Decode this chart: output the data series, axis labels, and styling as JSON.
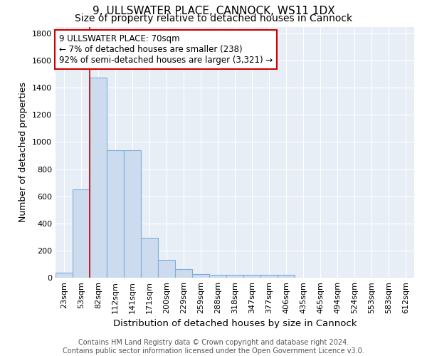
{
  "title1": "9, ULLSWATER PLACE, CANNOCK, WS11 1DX",
  "title2": "Size of property relative to detached houses in Cannock",
  "xlabel": "Distribution of detached houses by size in Cannock",
  "ylabel": "Number of detached properties",
  "categories": [
    "23sqm",
    "53sqm",
    "82sqm",
    "112sqm",
    "141sqm",
    "171sqm",
    "200sqm",
    "229sqm",
    "259sqm",
    "288sqm",
    "318sqm",
    "347sqm",
    "377sqm",
    "406sqm",
    "435sqm",
    "465sqm",
    "494sqm",
    "524sqm",
    "553sqm",
    "583sqm",
    "612sqm"
  ],
  "values": [
    35,
    650,
    1475,
    940,
    940,
    295,
    130,
    65,
    25,
    20,
    20,
    20,
    20,
    20,
    0,
    0,
    0,
    0,
    0,
    0,
    0
  ],
  "bar_color": "#ccdcee",
  "bar_edge_color": "#7bafd4",
  "red_line_color": "#cc0000",
  "red_line_index": 2,
  "annotation_text": "9 ULLSWATER PLACE: 70sqm\n← 7% of detached houses are smaller (238)\n92% of semi-detached houses are larger (3,321) →",
  "annotation_box_color": "white",
  "annotation_box_edge": "#cc0000",
  "ylim": [
    0,
    1850
  ],
  "yticks": [
    0,
    200,
    400,
    600,
    800,
    1000,
    1200,
    1400,
    1600,
    1800
  ],
  "background_color": "#e8eef6",
  "grid_color": "white",
  "footer_line1": "Contains HM Land Registry data © Crown copyright and database right 2024.",
  "footer_line2": "Contains public sector information licensed under the Open Government Licence v3.0.",
  "title1_fontsize": 11,
  "title2_fontsize": 10,
  "xlabel_fontsize": 9.5,
  "ylabel_fontsize": 9,
  "tick_fontsize": 8,
  "footer_fontsize": 7,
  "ann_fontsize": 8.5
}
